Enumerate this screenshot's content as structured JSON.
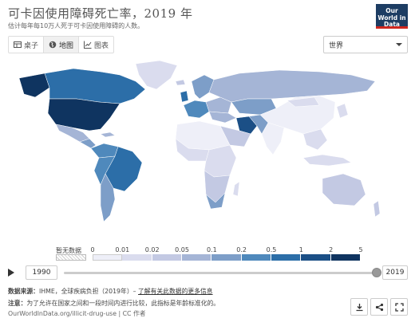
{
  "header": {
    "title": "可卡因使用障碍死亡率，2019 年",
    "subtitle": "估计每年每10万人死于可卡因使用障碍的人数。",
    "logo": "Our World in Data"
  },
  "tabs": [
    {
      "label": "桌子",
      "icon": "table-icon",
      "active": false
    },
    {
      "label": "地图",
      "icon": "globe-icon",
      "active": true
    },
    {
      "label": "图表",
      "icon": "chart-icon",
      "active": false
    }
  ],
  "region_select": {
    "value": "世界"
  },
  "legend": {
    "no_data_label": "暂无数据",
    "ticks": [
      "0",
      "0.01",
      "0.02",
      "0.05",
      "0.1",
      "0.2",
      "0.5",
      "1",
      "2",
      "5"
    ],
    "colors": [
      "#eeeff8",
      "#dadcee",
      "#c3c9e3",
      "#a5b5d6",
      "#7d9ec8",
      "#4f89bc",
      "#2c6ea8",
      "#1b4f86",
      "#0f3460"
    ]
  },
  "timeline": {
    "start_year": "1990",
    "end_year": "2019",
    "selected_fraction": 1.0
  },
  "footer": {
    "source_label": "数据来源：",
    "source_text": "IHME，全球疾病负担（2019年）–",
    "source_link": "了解有关此数据的更多信息",
    "note_label": "注意：",
    "note_text": "为了允许在国家之间和一段时间内进行比较，此指标是年龄标准化的。",
    "credit": "OurWorldInData.org/illicit-drug-use | CC 作者"
  },
  "actions": [
    {
      "icon": "download-icon"
    },
    {
      "icon": "share-icon"
    },
    {
      "icon": "fullscreen-icon"
    }
  ]
}
